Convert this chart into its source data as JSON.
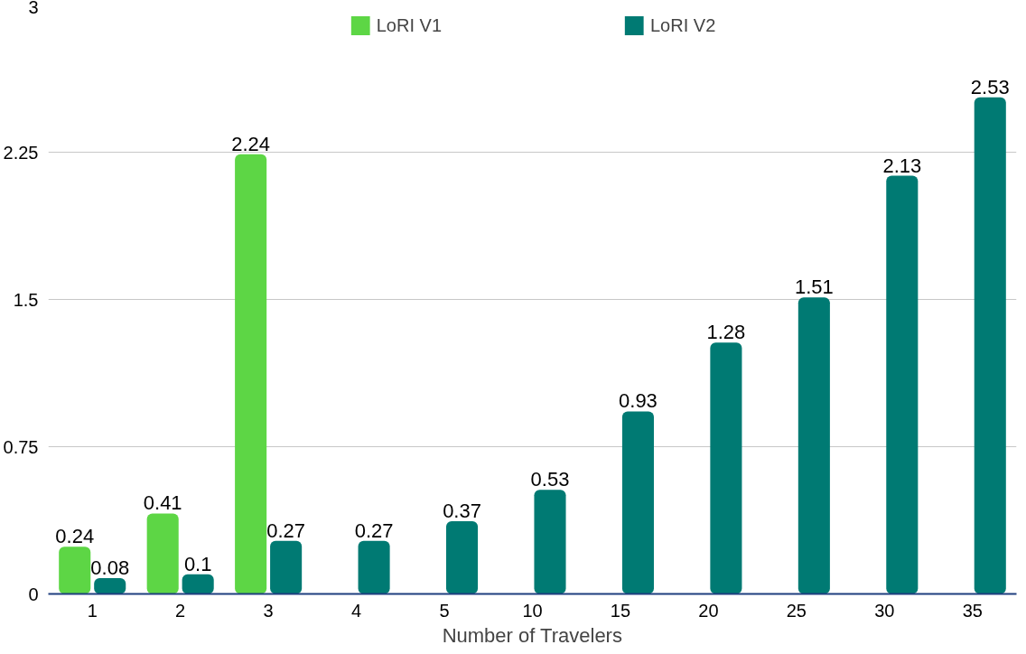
{
  "chart_data": {
    "type": "bar",
    "xlabel": "Number of Travelers",
    "categories": [
      "1",
      "2",
      "3",
      "4",
      "5",
      "10",
      "15",
      "20",
      "25",
      "30",
      "35"
    ],
    "series": [
      {
        "name": "LoRI V1",
        "color": "#5dd645",
        "values": [
          0.24,
          0.41,
          2.24,
          null,
          null,
          null,
          null,
          null,
          null,
          null,
          null
        ]
      },
      {
        "name": "LoRI V2",
        "color": "#007a73",
        "values": [
          0.08,
          0.1,
          0.27,
          0.27,
          0.37,
          0.53,
          0.93,
          1.28,
          1.51,
          2.13,
          2.53
        ]
      }
    ],
    "ylim": [
      0,
      3
    ],
    "yticks": [
      0,
      0.75,
      1.5,
      2.25,
      3
    ],
    "grid": "y",
    "legend": "top",
    "data_labels": true
  }
}
